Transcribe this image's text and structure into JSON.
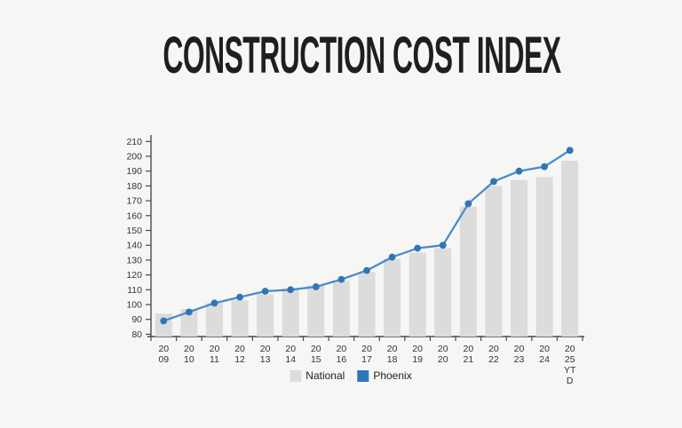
{
  "page": {
    "background": "#f6f6f4"
  },
  "title": "CONSTRUCTION COST INDEX",
  "chart_data": {
    "type": "bar+line",
    "title": "CONSTRUCTION COST INDEX",
    "xlabel": "",
    "ylabel": "",
    "ylim": [
      80,
      210
    ],
    "ytick_step": 10,
    "grid": false,
    "legend_position": "bottom",
    "categories": [
      "2009",
      "2010",
      "2011",
      "2012",
      "2013",
      "2014",
      "2015",
      "2016",
      "2017",
      "2018",
      "2019",
      "2020",
      "2021",
      "2022",
      "2023",
      "2024",
      "2025 YTD"
    ],
    "category_label_lines": [
      [
        "20",
        "09"
      ],
      [
        "20",
        "10"
      ],
      [
        "20",
        "11"
      ],
      [
        "20",
        "12"
      ],
      [
        "20",
        "13"
      ],
      [
        "20",
        "14"
      ],
      [
        "20",
        "15"
      ],
      [
        "20",
        "16"
      ],
      [
        "20",
        "17"
      ],
      [
        "20",
        "18"
      ],
      [
        "20",
        "19"
      ],
      [
        "20",
        "20"
      ],
      [
        "20",
        "21"
      ],
      [
        "20",
        "22"
      ],
      [
        "20",
        "23"
      ],
      [
        "20",
        "24"
      ],
      [
        "20",
        "25",
        "YT",
        "D"
      ]
    ],
    "series": [
      {
        "name": "National",
        "type": "bar",
        "color": "#dcdcda",
        "values": [
          94,
          97,
          101,
          103,
          107,
          111,
          113,
          116,
          122,
          131,
          135,
          138,
          166,
          180,
          184,
          186,
          197
        ]
      },
      {
        "name": "Phoenix",
        "type": "line",
        "color": "#2f76b8",
        "line_color": "#4e8ac8",
        "values": [
          89,
          95,
          101,
          105,
          109,
          110,
          112,
          117,
          123,
          132,
          138,
          140,
          168,
          183,
          190,
          193,
          204
        ]
      }
    ],
    "axis_color": "#4a4a4a",
    "tick_label_color": "#333333"
  },
  "legend": {
    "items": [
      {
        "label": "National",
        "color": "#dcdcda"
      },
      {
        "label": "Phoenix",
        "color": "#2f76b8"
      }
    ]
  }
}
